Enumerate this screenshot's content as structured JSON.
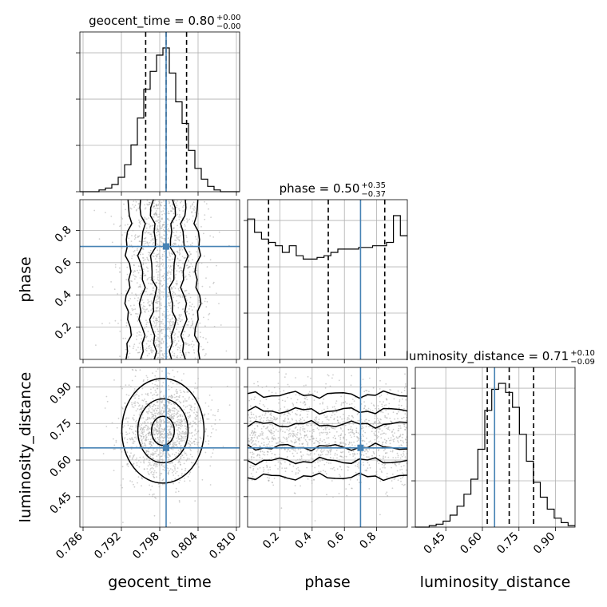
{
  "chart_data": {
    "type": "corner",
    "parameters": [
      "geocent_time",
      "phase",
      "luminosity_distance"
    ],
    "axis_labels": {
      "geocent_time": "geocent_time",
      "phase": "phase",
      "luminosity_distance": "luminosity_distance"
    },
    "titles": {
      "geocent_time": {
        "text": "geocent_time = 0.80",
        "plus": "+0.00",
        "minus": "−0.00"
      },
      "phase": {
        "text": "phase = 0.50",
        "plus": "+0.35",
        "minus": "−0.37"
      },
      "luminosity_distance": {
        "text": "luminosity_distance = 0.71",
        "plus": "+0.10",
        "minus": "−0.09"
      }
    },
    "ranges": {
      "geocent_time": [
        0.7855,
        0.8105
      ],
      "phase": [
        0.0,
        0.99
      ],
      "luminosity_distance": [
        0.325,
        0.98
      ]
    },
    "ticks": {
      "geocent_time": {
        "values": [
          0.786,
          0.792,
          0.798,
          0.804,
          0.81
        ],
        "labels": [
          "0.786",
          "0.792",
          "0.798",
          "0.804",
          "0.810"
        ]
      },
      "phase": {
        "values": [
          0.2,
          0.4,
          0.6,
          0.8
        ],
        "labels": [
          "0.2",
          "0.4",
          "0.6",
          "0.8"
        ]
      },
      "luminosity_distance": {
        "values": [
          0.45,
          0.6,
          0.75,
          0.9
        ],
        "labels": [
          "0.45",
          "0.60",
          "0.75",
          "0.90"
        ]
      }
    },
    "truths": {
      "geocent_time": 0.799,
      "phase": 0.7,
      "luminosity_distance": 0.65
    },
    "quantiles": {
      "geocent_time": [
        0.7958,
        0.799,
        0.8022
      ],
      "phase": [
        0.13,
        0.5,
        0.85
      ],
      "luminosity_distance": [
        0.62,
        0.71,
        0.81
      ]
    },
    "histograms": {
      "geocent_time": {
        "range": [
          0.7855,
          0.8105
        ],
        "counts": [
          0,
          0,
          0,
          1,
          2,
          4,
          8,
          15,
          26,
          41,
          57,
          67,
          76,
          80,
          66,
          50,
          38,
          23,
          13,
          7,
          3,
          1,
          0,
          0,
          0
        ]
      },
      "phase": {
        "range": [
          0.0,
          0.99
        ],
        "counts": [
          84,
          76,
          72,
          70,
          68,
          64,
          68,
          62,
          60,
          60,
          61,
          62,
          64,
          66,
          66,
          66,
          67,
          67,
          68,
          68,
          70,
          86,
          74
        ]
      },
      "luminosity_distance": {
        "range": [
          0.325,
          0.98
        ],
        "counts": [
          0,
          0,
          1,
          2,
          4,
          8,
          14,
          22,
          32,
          52,
          78,
          92,
          96,
          90,
          80,
          62,
          44,
          30,
          20,
          12,
          6,
          3,
          1
        ]
      }
    },
    "grid": true
  }
}
